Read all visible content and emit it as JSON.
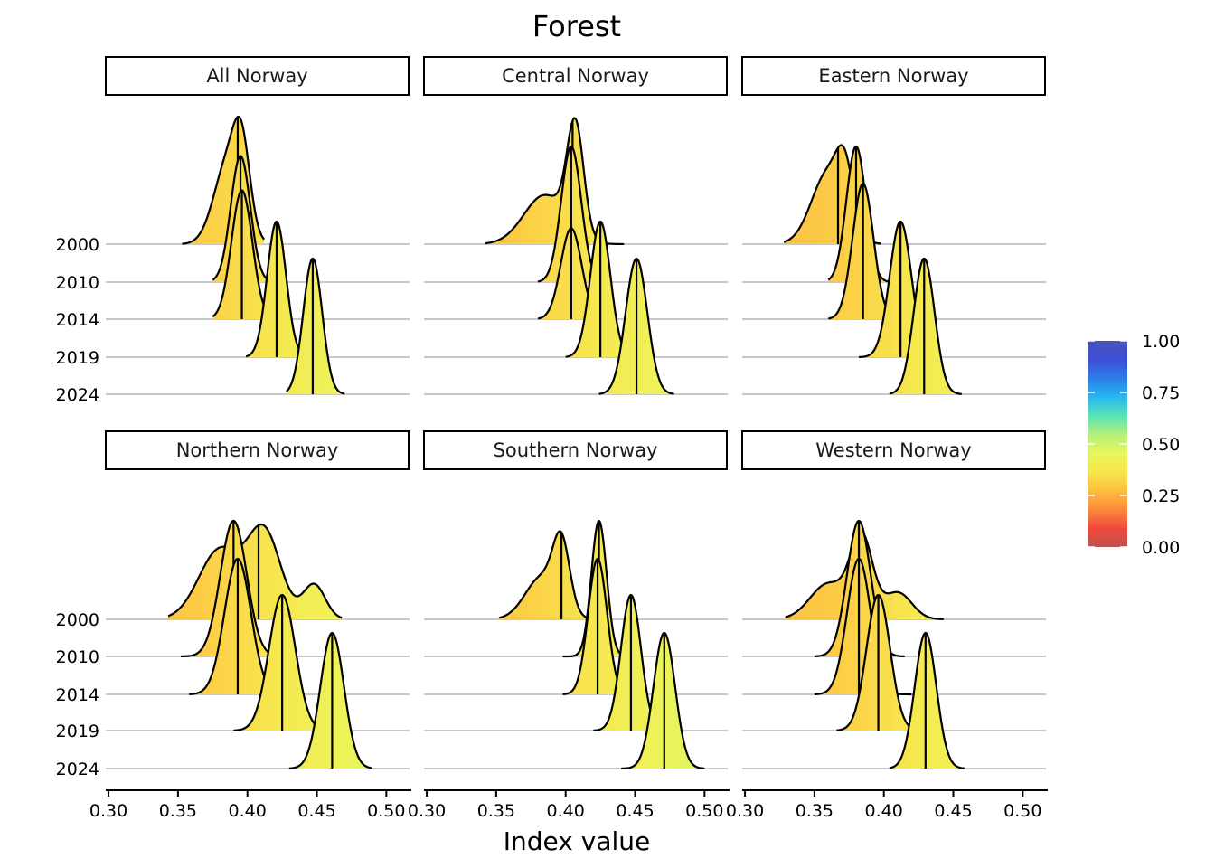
{
  "chart_data": {
    "type": "ridgeline",
    "title": "Forest",
    "xlabel": "Index value",
    "ylabel": "",
    "xlim": [
      0.3,
      0.52
    ],
    "x_ticks": [
      "0.30",
      "0.35",
      "0.40",
      "0.45",
      "0.50"
    ],
    "x_tick_values": [
      0.3,
      0.35,
      0.4,
      0.45,
      0.5
    ],
    "years": [
      "2000",
      "2010",
      "2014",
      "2019",
      "2024"
    ],
    "colorbar": {
      "label": "",
      "ticks": [
        "0.00",
        "0.25",
        "0.50",
        "0.75",
        "1.00"
      ],
      "scale": [
        "#c0504d",
        "#f04a3c",
        "#fb8a3a",
        "#fdbe3e",
        "#f7e64c",
        "#e8f65e",
        "#b6f07a",
        "#57e3b6",
        "#27b8f0",
        "#2a7ee8",
        "#3f4ed8",
        "#4a55b8"
      ]
    },
    "panels": [
      {
        "name": "All Norway",
        "series": [
          {
            "year": "2000",
            "median": 0.393,
            "min": 0.353,
            "max": 0.412,
            "peak": 0.94,
            "comps": [
              [
                0.386,
                0.01,
                0.8
              ],
              [
                0.396,
                0.006,
                0.7
              ]
            ]
          },
          {
            "year": "2010",
            "median": 0.395,
            "min": 0.375,
            "max": 0.416,
            "peak": 0.93,
            "comps": [
              [
                0.395,
                0.007,
                1.0
              ]
            ]
          },
          {
            "year": "2014",
            "median": 0.396,
            "min": 0.375,
            "max": 0.418,
            "peak": 0.95,
            "comps": [
              [
                0.396,
                0.0075,
                1.0
              ]
            ]
          },
          {
            "year": "2019",
            "median": 0.421,
            "min": 0.399,
            "max": 0.444,
            "peak": 1.0,
            "comps": [
              [
                0.421,
                0.0068,
                1.0
              ]
            ]
          },
          {
            "year": "2024",
            "median": 0.447,
            "min": 0.428,
            "max": 0.47,
            "peak": 1.0,
            "comps": [
              [
                0.447,
                0.0068,
                1.0
              ]
            ]
          }
        ]
      },
      {
        "name": "Central Norway",
        "series": [
          {
            "year": "2000",
            "median": 0.405,
            "min": 0.342,
            "max": 0.442,
            "peak": 0.93,
            "comps": [
              [
                0.385,
                0.015,
                0.45
              ],
              [
                0.407,
                0.006,
                1.0
              ]
            ]
          },
          {
            "year": "2010",
            "median": 0.404,
            "min": 0.38,
            "max": 0.428,
            "peak": 1.0,
            "comps": [
              [
                0.404,
                0.0072,
                1.0
              ]
            ]
          },
          {
            "year": "2014",
            "median": 0.404,
            "min": 0.38,
            "max": 0.43,
            "peak": 0.67,
            "comps": [
              [
                0.404,
                0.0075,
                1.0
              ]
            ]
          },
          {
            "year": "2019",
            "median": 0.425,
            "min": 0.4,
            "max": 0.45,
            "peak": 1.0,
            "comps": [
              [
                0.425,
                0.0072,
                1.0
              ]
            ]
          },
          {
            "year": "2024",
            "median": 0.451,
            "min": 0.424,
            "max": 0.478,
            "peak": 1.0,
            "comps": [
              [
                0.451,
                0.0078,
                1.0
              ]
            ]
          }
        ]
      },
      {
        "name": "Eastern Norway",
        "series": [
          {
            "year": "2000",
            "median": 0.367,
            "min": 0.328,
            "max": 0.398,
            "peak": 0.73,
            "comps": [
              [
                0.36,
                0.012,
                0.85
              ],
              [
                0.372,
                0.006,
                0.6
              ]
            ]
          },
          {
            "year": "2010",
            "median": 0.38,
            "min": 0.36,
            "max": 0.404,
            "peak": 1.0,
            "comps": [
              [
                0.38,
                0.007,
                1.0
              ]
            ]
          },
          {
            "year": "2014",
            "median": 0.385,
            "min": 0.36,
            "max": 0.41,
            "peak": 1.0,
            "comps": [
              [
                0.385,
                0.0075,
                1.0
              ]
            ]
          },
          {
            "year": "2019",
            "median": 0.412,
            "min": 0.382,
            "max": 0.437,
            "peak": 1.0,
            "comps": [
              [
                0.412,
                0.0078,
                1.0
              ]
            ]
          },
          {
            "year": "2024",
            "median": 0.429,
            "min": 0.404,
            "max": 0.456,
            "peak": 1.0,
            "comps": [
              [
                0.429,
                0.0075,
                1.0
              ]
            ]
          }
        ]
      },
      {
        "name": "Northern Norway",
        "series": [
          {
            "year": "2000",
            "median": 0.408,
            "min": 0.343,
            "max": 0.468,
            "peak": 0.7,
            "comps": [
              [
                0.38,
                0.015,
                0.6
              ],
              [
                0.412,
                0.012,
                0.75
              ],
              [
                0.448,
                0.008,
                0.3
              ]
            ]
          },
          {
            "year": "2010",
            "median": 0.39,
            "min": 0.352,
            "max": 0.43,
            "peak": 1.0,
            "comps": [
              [
                0.39,
                0.0095,
                1.0
              ]
            ]
          },
          {
            "year": "2014",
            "median": 0.393,
            "min": 0.358,
            "max": 0.432,
            "peak": 1.0,
            "comps": [
              [
                0.393,
                0.0095,
                1.0
              ]
            ]
          },
          {
            "year": "2019",
            "median": 0.425,
            "min": 0.39,
            "max": 0.46,
            "peak": 1.0,
            "comps": [
              [
                0.425,
                0.0095,
                1.0
              ]
            ]
          },
          {
            "year": "2024",
            "median": 0.461,
            "min": 0.43,
            "max": 0.49,
            "peak": 1.0,
            "comps": [
              [
                0.461,
                0.0085,
                1.0
              ]
            ]
          }
        ]
      },
      {
        "name": "Southern Norway",
        "series": [
          {
            "year": "2000",
            "median": 0.397,
            "min": 0.352,
            "max": 0.43,
            "peak": 0.65,
            "comps": [
              [
                0.383,
                0.012,
                0.55
              ],
              [
                0.397,
                0.006,
                0.85
              ]
            ]
          },
          {
            "year": "2010",
            "median": 0.424,
            "min": 0.398,
            "max": 0.45,
            "peak": 1.0,
            "comps": [
              [
                0.424,
                0.0055,
                1.0
              ]
            ]
          },
          {
            "year": "2014",
            "median": 0.423,
            "min": 0.398,
            "max": 0.448,
            "peak": 1.0,
            "comps": [
              [
                0.423,
                0.0068,
                1.0
              ]
            ]
          },
          {
            "year": "2019",
            "median": 0.447,
            "min": 0.42,
            "max": 0.474,
            "peak": 1.0,
            "comps": [
              [
                0.447,
                0.0072,
                1.0
              ]
            ]
          },
          {
            "year": "2024",
            "median": 0.471,
            "min": 0.44,
            "max": 0.5,
            "peak": 1.0,
            "comps": [
              [
                0.471,
                0.0078,
                1.0
              ]
            ]
          }
        ]
      },
      {
        "name": "Western Norway",
        "series": [
          {
            "year": "2000",
            "median": 0.382,
            "min": 0.329,
            "max": 0.443,
            "peak": 0.65,
            "comps": [
              [
                0.36,
                0.013,
                0.4
              ],
              [
                0.384,
                0.008,
                0.9
              ],
              [
                0.41,
                0.01,
                0.3
              ]
            ]
          },
          {
            "year": "2010",
            "median": 0.382,
            "min": 0.35,
            "max": 0.415,
            "peak": 1.0,
            "comps": [
              [
                0.382,
                0.0085,
                1.0
              ]
            ]
          },
          {
            "year": "2014",
            "median": 0.382,
            "min": 0.35,
            "max": 0.42,
            "peak": 1.0,
            "comps": [
              [
                0.382,
                0.0085,
                1.0
              ]
            ]
          },
          {
            "year": "2019",
            "median": 0.396,
            "min": 0.366,
            "max": 0.428,
            "peak": 1.0,
            "comps": [
              [
                0.396,
                0.0085,
                1.0
              ]
            ]
          },
          {
            "year": "2024",
            "median": 0.43,
            "min": 0.404,
            "max": 0.458,
            "peak": 1.0,
            "comps": [
              [
                0.43,
                0.0078,
                1.0
              ]
            ]
          }
        ]
      }
    ]
  }
}
